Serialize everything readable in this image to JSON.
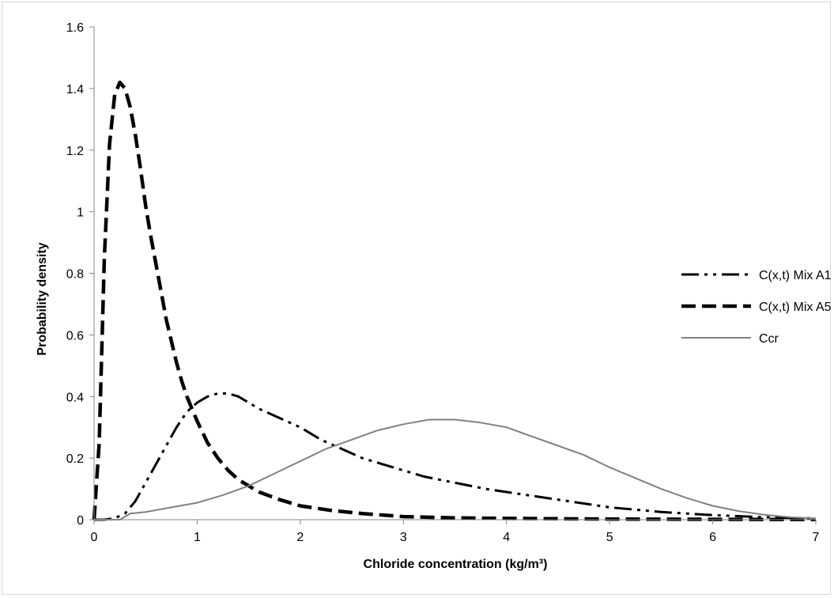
{
  "chart_data": {
    "type": "line",
    "xlabel": "Chloride concentration (kg/m³)",
    "ylabel": "Probability density",
    "xlim": [
      0,
      7
    ],
    "ylim": [
      0,
      1.6
    ],
    "x_ticks": [
      0,
      1,
      2,
      3,
      4,
      5,
      6,
      7
    ],
    "y_ticks": [
      0,
      0.2,
      0.4,
      0.6,
      0.8,
      1,
      1.2,
      1.4,
      1.6
    ],
    "x_tick_labels": [
      "0",
      "1",
      "2",
      "3",
      "4",
      "5",
      "6",
      "7"
    ],
    "y_tick_labels": [
      "0",
      "0.2",
      "0.4",
      "0.6",
      "0.8",
      "1",
      "1.2",
      "1.4",
      "1.6"
    ],
    "grid": false,
    "legend_position": "right",
    "series": [
      {
        "name": "C(x,t) Mix A1",
        "style": "dash-dot-dot",
        "color": "#000000",
        "x": [
          0,
          0.1,
          0.2,
          0.3,
          0.4,
          0.5,
          0.6,
          0.7,
          0.8,
          0.9,
          1.0,
          1.1,
          1.2,
          1.3,
          1.4,
          1.5,
          1.6,
          1.8,
          2.0,
          2.2,
          2.4,
          2.6,
          2.8,
          3.0,
          3.2,
          3.5,
          3.8,
          4.0,
          4.2,
          4.5,
          4.8,
          5.0,
          5.5,
          6.0,
          6.5,
          7.0
        ],
        "y": [
          0,
          0,
          0.005,
          0.02,
          0.06,
          0.12,
          0.18,
          0.24,
          0.3,
          0.35,
          0.38,
          0.4,
          0.41,
          0.41,
          0.4,
          0.38,
          0.36,
          0.33,
          0.3,
          0.26,
          0.23,
          0.2,
          0.18,
          0.16,
          0.14,
          0.12,
          0.1,
          0.09,
          0.08,
          0.065,
          0.05,
          0.04,
          0.025,
          0.015,
          0.008,
          0.004
        ]
      },
      {
        "name": "C(x,t) Mix A5",
        "style": "long-dash",
        "color": "#000000",
        "x": [
          0,
          0.05,
          0.1,
          0.15,
          0.2,
          0.25,
          0.3,
          0.35,
          0.4,
          0.45,
          0.5,
          0.55,
          0.6,
          0.65,
          0.7,
          0.75,
          0.8,
          0.85,
          0.9,
          1.0,
          1.1,
          1.2,
          1.3,
          1.4,
          1.6,
          1.8,
          2.0,
          2.3,
          2.6,
          3.0,
          3.5,
          4.0,
          5.0,
          6.0,
          7.0
        ],
        "y": [
          0,
          0.25,
          0.85,
          1.22,
          1.38,
          1.42,
          1.4,
          1.34,
          1.25,
          1.14,
          1.02,
          0.92,
          0.83,
          0.74,
          0.65,
          0.58,
          0.51,
          0.45,
          0.4,
          0.32,
          0.25,
          0.2,
          0.16,
          0.13,
          0.09,
          0.065,
          0.045,
          0.03,
          0.02,
          0.01,
          0.006,
          0.004,
          0.002,
          0.001,
          0.0005
        ]
      },
      {
        "name": "Ccr",
        "style": "solid",
        "color": "#808080",
        "x": [
          0,
          0.25,
          0.3,
          0.35,
          0.5,
          0.75,
          1.0,
          1.25,
          1.5,
          1.75,
          2.0,
          2.25,
          2.5,
          2.75,
          3.0,
          3.25,
          3.5,
          3.75,
          4.0,
          4.25,
          4.5,
          4.75,
          5.0,
          5.25,
          5.5,
          5.75,
          6.0,
          6.25,
          6.5,
          6.75,
          7.0
        ],
        "y": [
          0,
          0,
          0.01,
          0.02,
          0.025,
          0.04,
          0.055,
          0.08,
          0.11,
          0.15,
          0.19,
          0.23,
          0.26,
          0.29,
          0.31,
          0.325,
          0.325,
          0.315,
          0.3,
          0.27,
          0.24,
          0.21,
          0.17,
          0.135,
          0.1,
          0.07,
          0.045,
          0.028,
          0.016,
          0.008,
          0.004
        ]
      }
    ]
  }
}
